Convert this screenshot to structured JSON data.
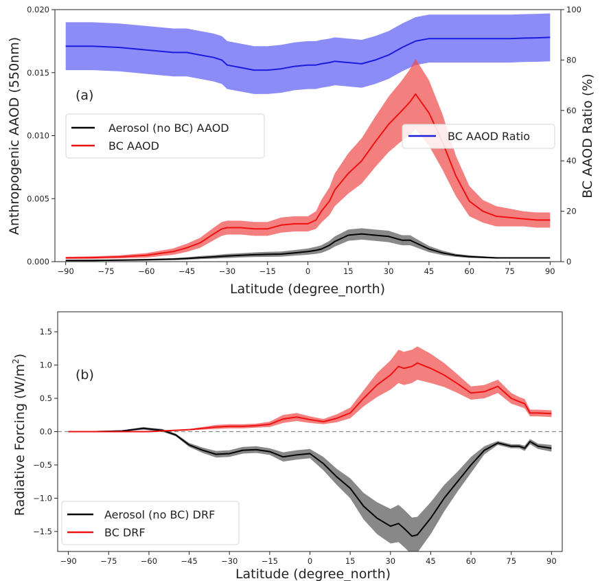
{
  "chart_data": [
    {
      "type": "line",
      "panel_label": "(a)",
      "xlabel": "Latitude (degree_north)",
      "ylabel": "Anthropogenic AAOD (550nm)",
      "y2label": "BC AAOD Ratio (%)",
      "xlim": [
        -94,
        94
      ],
      "ylim": [
        0,
        0.02
      ],
      "y2lim": [
        0,
        100
      ],
      "xticks": [
        "−90",
        "−75",
        "−60",
        "−45",
        "−30",
        "−15",
        "0",
        "15",
        "30",
        "45",
        "60",
        "75",
        "90"
      ],
      "yticks": [
        "0.000",
        "0.005",
        "0.010",
        "0.015",
        "0.020"
      ],
      "y2ticks": [
        "0",
        "20",
        "40",
        "60",
        "80",
        "100"
      ],
      "legend_left": {
        "placement": "upper-left",
        "entries": [
          "Aerosol (no BC) AAOD",
          "BC AAOD"
        ]
      },
      "legend_right": {
        "placement": "center-right",
        "entries": [
          "BC AAOD Ratio"
        ]
      },
      "x": [
        -90,
        -80,
        -70,
        -60,
        -50,
        -45,
        -40,
        -35,
        -32,
        -30,
        -25,
        -20,
        -15,
        -10,
        -5,
        0,
        3,
        5,
        8,
        10,
        15,
        20,
        25,
        30,
        35,
        38,
        40,
        45,
        50,
        55,
        60,
        65,
        70,
        75,
        80,
        85,
        90
      ],
      "series": [
        {
          "name": "Aerosol (no BC) AAOD",
          "axis": "left",
          "color": "#000000",
          "band_color": "#555555",
          "values": [
            0.0001,
            0.0001,
            0.00012,
            0.00015,
            0.0002,
            0.00025,
            0.00032,
            0.00038,
            0.00042,
            0.00045,
            0.0005,
            0.00055,
            0.00058,
            0.0006,
            0.0007,
            0.0008,
            0.0009,
            0.001,
            0.0013,
            0.0016,
            0.0021,
            0.0022,
            0.0021,
            0.002,
            0.0017,
            0.0017,
            0.0015,
            0.001,
            0.0007,
            0.0005,
            0.0004,
            0.00035,
            0.0003,
            0.0003,
            0.0003,
            0.0003,
            0.0003
          ],
          "band": [
            5e-05,
            5e-05,
            6e-05,
            7e-05,
            8e-05,
            0.0001,
            0.00012,
            0.00014,
            0.00015,
            0.00016,
            0.00017,
            0.00018,
            0.0002,
            0.0002,
            0.00022,
            0.00025,
            0.00028,
            0.0003,
            0.00035,
            0.0004,
            0.00045,
            0.00045,
            0.00045,
            0.00045,
            0.0004,
            0.0004,
            0.00035,
            0.00025,
            0.00018,
            0.00012,
            0.0001,
            8e-05,
            6e-05,
            5e-05,
            5e-05,
            5e-05,
            5e-05
          ]
        },
        {
          "name": "BC AAOD",
          "axis": "left",
          "color": "#ee1111",
          "band_color": "#f04848",
          "values": [
            0.0003,
            0.00032,
            0.00038,
            0.0005,
            0.0008,
            0.0011,
            0.0015,
            0.0022,
            0.0026,
            0.0027,
            0.0027,
            0.0026,
            0.0026,
            0.0029,
            0.003,
            0.003,
            0.0033,
            0.004,
            0.0048,
            0.0057,
            0.007,
            0.008,
            0.0095,
            0.0109,
            0.012,
            0.0127,
            0.0133,
            0.0118,
            0.0095,
            0.0068,
            0.0048,
            0.004,
            0.0036,
            0.0035,
            0.0034,
            0.0033,
            0.0033
          ],
          "band": [
            8e-05,
            0.0001,
            0.00012,
            0.00018,
            0.00025,
            0.00032,
            0.0004,
            0.0005,
            0.00055,
            0.00055,
            0.00055,
            0.00055,
            0.00055,
            0.0006,
            0.0006,
            0.0006,
            0.0007,
            0.0009,
            0.0011,
            0.0013,
            0.0016,
            0.0018,
            0.002,
            0.0022,
            0.0024,
            0.0026,
            0.0028,
            0.0026,
            0.0022,
            0.0016,
            0.0012,
            0.0009,
            0.0008,
            0.0007,
            0.0006,
            0.0006,
            0.0006
          ]
        },
        {
          "name": "BC AAOD Ratio",
          "axis": "right",
          "color": "#1a1add",
          "band_color": "#5b5bf5",
          "values": [
            85.5,
            85.5,
            85,
            84,
            83,
            83,
            82,
            81,
            80,
            78,
            77,
            76,
            76,
            76.5,
            77.5,
            78,
            78,
            78.5,
            79,
            79.5,
            79,
            78.5,
            80,
            82,
            85,
            86.5,
            87.5,
            88.5,
            88.5,
            88.5,
            88.5,
            88.5,
            88.5,
            88.5,
            88.7,
            88.8,
            89
          ],
          "band": [
            9.5,
            9.5,
            9.5,
            9.5,
            9.5,
            9.5,
            9.5,
            9.5,
            9.5,
            9.5,
            9.5,
            9.5,
            9.5,
            9.5,
            9.5,
            9.5,
            9.5,
            9.5,
            9.5,
            9.5,
            9.5,
            9.5,
            9.5,
            9.5,
            9.5,
            9.5,
            9.5,
            9.5,
            9.5,
            9.5,
            9.5,
            9.5,
            9.5,
            9.5,
            9.5,
            9.5,
            9.5
          ]
        }
      ]
    },
    {
      "type": "line",
      "panel_label": "(b)",
      "xlabel": "Latitude (degree_north)",
      "ylabel_parts": [
        "Radiative Forcing (W/m",
        "2",
        ")"
      ],
      "xlim": [
        -94,
        94
      ],
      "ylim": [
        -1.8,
        1.8
      ],
      "xticks": [
        "−90",
        "−75",
        "−60",
        "−45",
        "−30",
        "−15",
        "0",
        "15",
        "30",
        "45",
        "60",
        "75",
        "90"
      ],
      "yticks": [
        "−1.5",
        "−1.0",
        "−0.5",
        "0.0",
        "0.5",
        "1.0",
        "1.5"
      ],
      "zero_line": true,
      "legend": {
        "placement": "lower-left",
        "entries": [
          "Aerosol (no BC) DRF",
          "BC DRF"
        ]
      },
      "x": [
        -90,
        -80,
        -70,
        -62,
        -60,
        -55,
        -50,
        -45,
        -40,
        -35,
        -30,
        -25,
        -20,
        -15,
        -10,
        -5,
        0,
        5,
        10,
        15,
        20,
        25,
        30,
        33,
        35,
        38,
        40,
        45,
        50,
        55,
        60,
        65,
        70,
        75,
        78,
        80,
        82,
        85,
        90
      ],
      "series": [
        {
          "name": "Aerosol (no BC) DRF",
          "color": "#000000",
          "band_color": "#555555",
          "values": [
            0,
            0,
            0.01,
            0.05,
            0.04,
            0.02,
            -0.05,
            -0.2,
            -0.28,
            -0.34,
            -0.33,
            -0.28,
            -0.27,
            -0.3,
            -0.38,
            -0.35,
            -0.33,
            -0.48,
            -0.68,
            -0.85,
            -1.12,
            -1.3,
            -1.42,
            -1.38,
            -1.45,
            -1.57,
            -1.55,
            -1.3,
            -1.0,
            -0.75,
            -0.5,
            -0.28,
            -0.17,
            -0.22,
            -0.22,
            -0.25,
            -0.15,
            -0.22,
            -0.25
          ],
          "band": [
            0.01,
            0.01,
            0.01,
            0.02,
            0.02,
            0.02,
            0.02,
            0.03,
            0.04,
            0.05,
            0.05,
            0.05,
            0.05,
            0.05,
            0.07,
            0.07,
            0.07,
            0.1,
            0.12,
            0.15,
            0.2,
            0.24,
            0.26,
            0.28,
            0.28,
            0.28,
            0.27,
            0.24,
            0.2,
            0.15,
            0.12,
            0.06,
            0.03,
            0.03,
            0.03,
            0.04,
            0.04,
            0.04,
            0.05
          ]
        },
        {
          "name": "BC DRF",
          "color": "#ee1111",
          "band_color": "#f04848",
          "values": [
            0,
            0,
            0,
            0,
            0,
            0.01,
            0.02,
            0.03,
            0.05,
            0.07,
            0.08,
            0.08,
            0.09,
            0.11,
            0.19,
            0.22,
            0.18,
            0.15,
            0.2,
            0.28,
            0.5,
            0.7,
            0.85,
            0.98,
            0.95,
            0.98,
            1.03,
            0.95,
            0.85,
            0.72,
            0.58,
            0.6,
            0.68,
            0.5,
            0.45,
            0.42,
            0.28,
            0.28,
            0.27
          ],
          "band": [
            0.005,
            0.005,
            0.005,
            0.005,
            0.005,
            0.005,
            0.01,
            0.01,
            0.02,
            0.03,
            0.03,
            0.03,
            0.03,
            0.04,
            0.06,
            0.06,
            0.05,
            0.04,
            0.06,
            0.08,
            0.12,
            0.18,
            0.22,
            0.25,
            0.25,
            0.25,
            0.25,
            0.22,
            0.18,
            0.14,
            0.1,
            0.1,
            0.1,
            0.08,
            0.07,
            0.07,
            0.05,
            0.05,
            0.05
          ]
        }
      ]
    }
  ]
}
